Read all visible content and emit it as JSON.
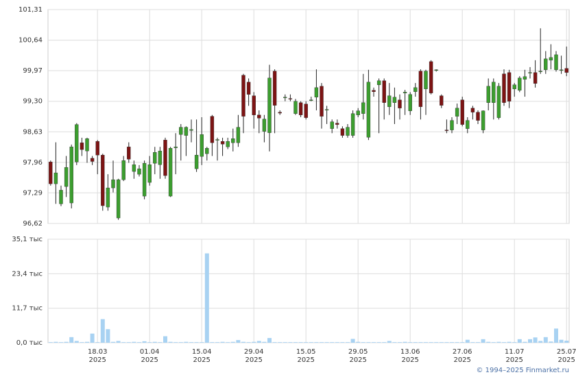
{
  "chart_data": [
    {
      "type": "candlestick",
      "categories": [
        null,
        null,
        null,
        null,
        null,
        null,
        null,
        null,
        null,
        "18.03\n2025",
        null,
        null,
        null,
        null,
        null,
        null,
        null,
        null,
        null,
        "01.04\n2025",
        null,
        null,
        null,
        null,
        null,
        null,
        null,
        null,
        null,
        "15.04\n2025",
        null,
        null,
        null,
        null,
        null,
        null,
        null,
        null,
        null,
        "29.04\n2025",
        null,
        null,
        null,
        null,
        null,
        null,
        null,
        null,
        null,
        "15.05\n2025",
        null,
        null,
        null,
        null,
        null,
        null,
        null,
        null,
        null,
        "29.05\n2025",
        null,
        null,
        null,
        null,
        null,
        null,
        null,
        null,
        null,
        "13.06\n2025",
        null,
        null,
        null,
        null,
        null,
        null,
        null,
        null,
        null,
        "27.06\n2025",
        null,
        null,
        null,
        null,
        null,
        null,
        null,
        null,
        null,
        "11.07\n2025",
        null,
        null,
        null,
        null,
        null,
        null,
        null,
        null,
        null,
        "25.07\n2025"
      ],
      "open": [
        97.97,
        97.49,
        97.05,
        97.43,
        97.07,
        97.97,
        98.39,
        98.21,
        98.05,
        98.42,
        98.12,
        96.98,
        97.4,
        96.74,
        97.58,
        98.3,
        97.76,
        97.7,
        97.22,
        97.52,
        97.94,
        97.91,
        98.45,
        97.22,
        98.28,
        98.57,
        98.55,
        98.66,
        97.82,
        98.09,
        98.15,
        98.97,
        98.45,
        98.42,
        98.3,
        98.39,
        98.39,
        99.87,
        99.72,
        99.42,
        99.0,
        98.64,
        98.61,
        99.96,
        99.06,
        99.38,
        99.36,
        99.03,
        99.27,
        99.24,
        99.33,
        99.39,
        99.63,
        99.12,
        98.7,
        98.82,
        98.7,
        98.55,
        98.55,
        99.0,
        99.03,
        98.51,
        99.54,
        99.66,
        99.75,
        99.18,
        99.27,
        99.33,
        99.48,
        99.09,
        99.51,
        99.96,
        99.57,
        100.17,
        99.99,
        99.42,
        98.67,
        98.67,
        98.97,
        99.33,
        98.7,
        99.15,
        99.06,
        98.67,
        99.27,
        99.27,
        98.94,
        99.9,
        99.93,
        99.57,
        99.54,
        99.78,
        99.93,
        99.93,
        99.96,
        99.99,
        100.2,
        99.99,
        99.99,
        100.02
      ],
      "high": [
        98.0,
        98.4,
        97.45,
        98.1,
        98.35,
        98.82,
        98.5,
        98.5,
        98.1,
        98.45,
        98.15,
        97.7,
        98.0,
        97.6,
        98.1,
        98.4,
        98.0,
        97.9,
        98.0,
        98.1,
        98.3,
        98.3,
        98.5,
        98.3,
        98.6,
        98.8,
        98.75,
        98.9,
        98.9,
        98.95,
        98.3,
        99.0,
        98.5,
        98.5,
        98.5,
        98.7,
        99.0,
        99.9,
        99.8,
        99.5,
        99.1,
        99.0,
        100.1,
        100.0,
        99.1,
        99.45,
        99.45,
        99.35,
        99.3,
        99.3,
        99.4,
        100.0,
        99.7,
        99.2,
        98.9,
        98.9,
        98.75,
        98.8,
        99.1,
        99.15,
        99.9,
        99.99,
        99.6,
        99.8,
        99.8,
        99.7,
        99.6,
        99.45,
        99.55,
        99.5,
        99.7,
        100.0,
        99.99,
        100.2,
        100.0,
        99.45,
        98.9,
        98.95,
        99.25,
        99.4,
        98.95,
        99.2,
        99.1,
        99.1,
        99.8,
        99.8,
        99.7,
        100.0,
        99.99,
        99.7,
        99.85,
        99.99,
        100.05,
        100.2,
        100.9,
        100.4,
        100.55,
        100.4,
        100.3,
        100.5
      ],
      "low": [
        97.45,
        97.05,
        97.0,
        97.2,
        96.95,
        97.9,
        98.1,
        97.95,
        97.9,
        97.7,
        96.9,
        96.9,
        97.3,
        96.7,
        97.55,
        97.95,
        97.6,
        97.65,
        97.15,
        97.45,
        97.7,
        97.6,
        97.6,
        97.2,
        97.7,
        98.0,
        98.1,
        98.4,
        97.75,
        97.9,
        98.0,
        98.1,
        98.0,
        98.1,
        98.25,
        98.2,
        98.3,
        98.6,
        99.2,
        98.7,
        98.6,
        98.4,
        98.2,
        98.6,
        99.0,
        99.3,
        99.3,
        99.0,
        98.95,
        98.9,
        99.3,
        99.1,
        98.7,
        98.8,
        98.6,
        98.7,
        98.5,
        98.5,
        98.5,
        98.95,
        98.9,
        98.45,
        99.4,
        98.6,
        98.9,
        99.0,
        98.8,
        98.9,
        99.0,
        99.0,
        99.4,
        98.9,
        99.0,
        99.45,
        99.95,
        99.15,
        98.6,
        98.6,
        98.8,
        98.75,
        98.6,
        98.9,
        98.8,
        98.6,
        99.1,
        98.9,
        98.9,
        99.2,
        99.15,
        99.4,
        99.5,
        99.4,
        99.8,
        99.6,
        99.9,
        99.9,
        100.0,
        99.95,
        99.9,
        99.85
      ],
      "close": [
        97.49,
        97.73,
        97.35,
        97.85,
        98.3,
        98.79,
        98.24,
        98.48,
        97.98,
        98.12,
        97.01,
        97.4,
        97.58,
        97.58,
        98.0,
        98.03,
        97.91,
        97.82,
        97.94,
        97.91,
        98.18,
        98.21,
        97.67,
        98.27,
        98.3,
        98.73,
        98.73,
        98.68,
        98.12,
        98.57,
        98.27,
        98.39,
        98.46,
        98.36,
        98.42,
        98.48,
        98.73,
        98.97,
        99.45,
        99.0,
        98.93,
        98.91,
        99.81,
        99.21,
        99.04,
        99.39,
        99.35,
        99.3,
        99.0,
        98.94,
        99.33,
        99.6,
        98.97,
        99.12,
        98.85,
        98.79,
        98.55,
        98.73,
        99.03,
        99.09,
        99.27,
        99.72,
        99.51,
        99.75,
        99.27,
        99.42,
        99.39,
        99.15,
        99.5,
        99.45,
        99.6,
        99.18,
        99.96,
        99.48,
        99.99,
        99.21,
        98.66,
        98.88,
        99.15,
        98.79,
        98.88,
        99.06,
        98.88,
        99.09,
        99.63,
        99.72,
        99.63,
        99.27,
        99.3,
        99.66,
        99.81,
        99.84,
        99.93,
        99.69,
        99.96,
        100.23,
        100.26,
        100.32,
        99.99,
        99.93
      ],
      "up_color": "#3c9e2f",
      "down_color": "#7d1414",
      "wick_color": "#222222",
      "ylim": [
        96.62,
        101.31
      ],
      "yticks": [
        {
          "value": 96.62,
          "label": "96,62"
        },
        {
          "value": 97.29,
          "label": "97,29"
        },
        {
          "value": 97.96,
          "label": "97,96"
        },
        {
          "value": 98.63,
          "label": "98,63"
        },
        {
          "value": 99.3,
          "label": "99,30"
        },
        {
          "value": 99.97,
          "label": "99,97"
        },
        {
          "value": 100.64,
          "label": "100,64"
        },
        {
          "value": 101.31,
          "label": "101,31"
        }
      ],
      "grid": true
    },
    {
      "type": "bar",
      "values": [
        0.2,
        0.3,
        0.2,
        0.3,
        1.9,
        0.6,
        0.2,
        0.3,
        3.1,
        0.2,
        8.0,
        4.6,
        0.3,
        0.6,
        0.2,
        0.2,
        0.3,
        0.2,
        0.5,
        0.2,
        0.3,
        0.2,
        2.2,
        0.3,
        0.2,
        0.2,
        0.3,
        0.2,
        0.2,
        0.2,
        30.3,
        0.2,
        0.2,
        0.3,
        0.2,
        0.3,
        0.9,
        0.3,
        0.2,
        0.3,
        0.6,
        0.3,
        1.6,
        0.2,
        0.2,
        0.2,
        0.2,
        0.2,
        0.2,
        0.2,
        0.2,
        0.2,
        0.2,
        0.2,
        0.2,
        0.2,
        0.2,
        0.2,
        1.3,
        0.3,
        0.2,
        0.2,
        0.2,
        0.2,
        0.2,
        0.6,
        0.2,
        0.2,
        0.3,
        0.2,
        0.2,
        0.2,
        0.2,
        0.2,
        0.2,
        0.2,
        0.2,
        0.2,
        0.2,
        0.2,
        1.0,
        0.2,
        0.2,
        1.2,
        0.3,
        0.2,
        0.3,
        0.2,
        0.3,
        0.2,
        1.2,
        0.3,
        1.2,
        1.8,
        0.6,
        1.9,
        0.4,
        4.8,
        1.0,
        0.7
      ],
      "color": "#a8d2f2",
      "ylim": [
        0,
        35.1
      ],
      "yticks": [
        {
          "value": 0,
          "label": "0,0 тыс"
        },
        {
          "value": 11.7,
          "label": "11,7 тыс"
        },
        {
          "value": 23.4,
          "label": "23,4 тыс"
        },
        {
          "value": 35.1,
          "label": "35,1 тыс"
        }
      ],
      "grid": true
    }
  ],
  "footer": "© 1994–2025 Finmarket.ru"
}
